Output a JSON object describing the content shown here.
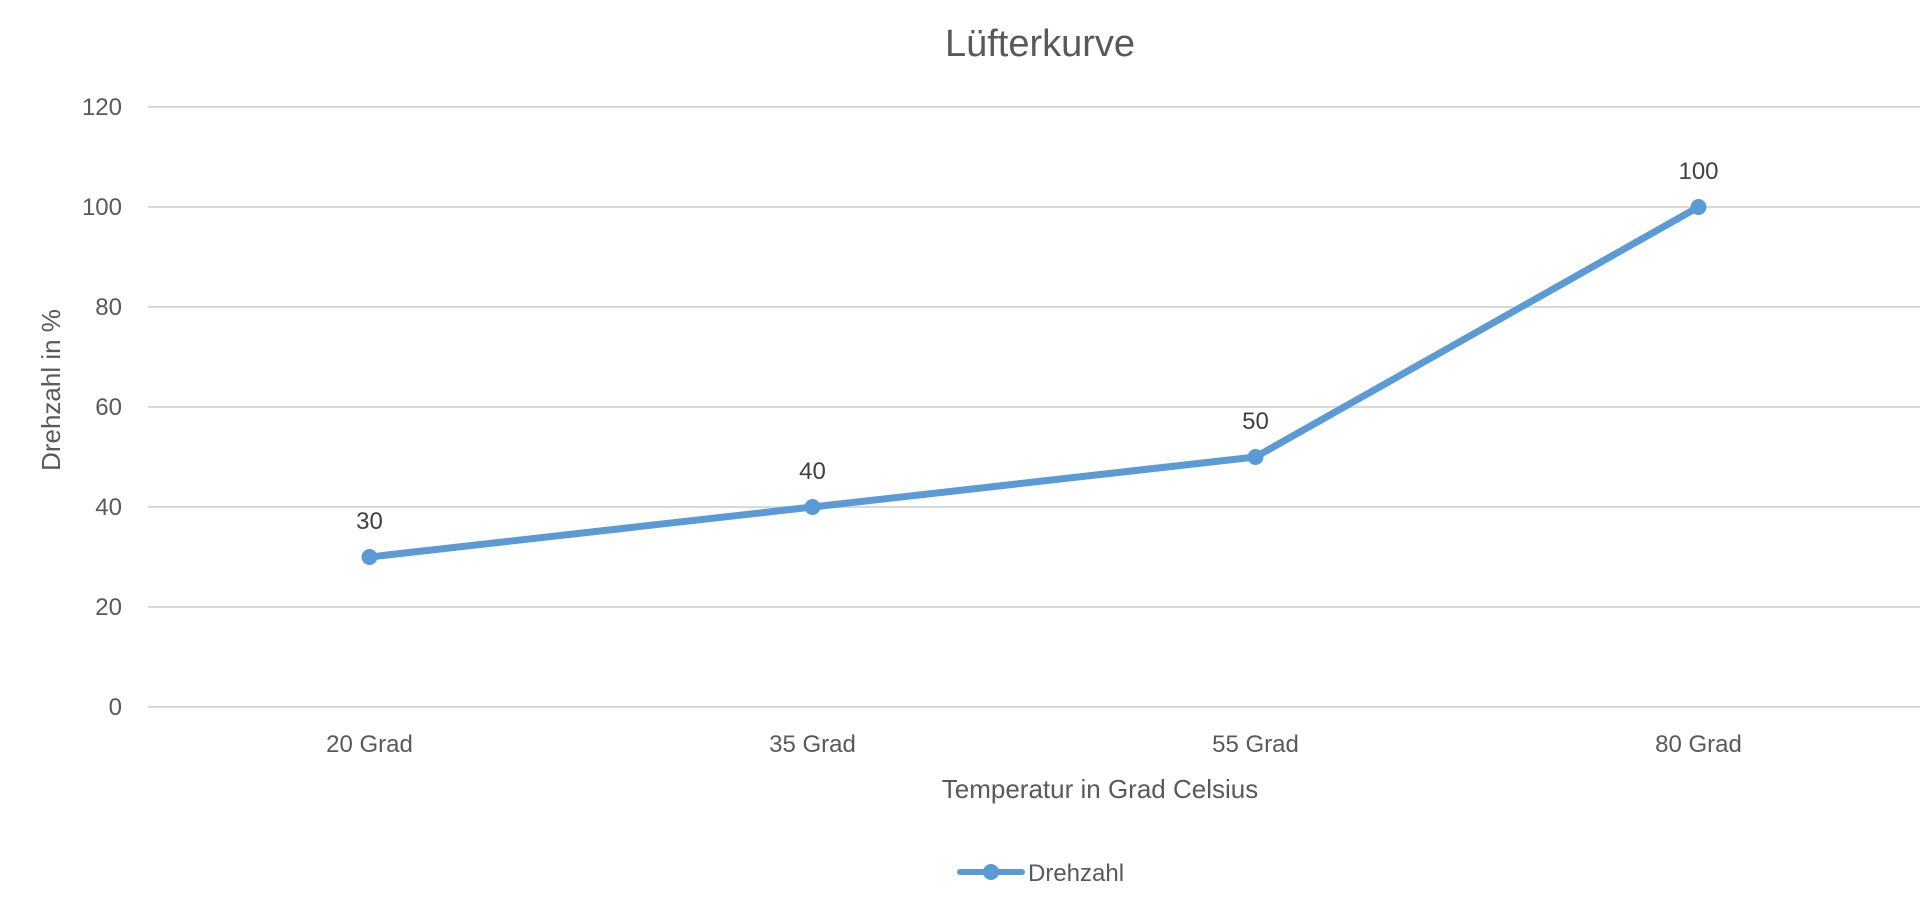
{
  "chart_data": {
    "type": "line",
    "title": "Lüfterkurve",
    "xlabel": "Temperatur in Grad Celsius",
    "ylabel": "Drehzahl in %",
    "categories": [
      "20 Grad",
      "35 Grad",
      "55 Grad",
      "80 Grad"
    ],
    "series": [
      {
        "name": "Drehzahl",
        "values": [
          30,
          40,
          50,
          100
        ],
        "color": "#5b9bd5",
        "data_labels": [
          "30",
          "40",
          "50",
          "100"
        ]
      }
    ],
    "ylim": [
      0,
      120
    ],
    "yticks": [
      "0",
      "20",
      "40",
      "60",
      "80",
      "100",
      "120"
    ],
    "grid": true,
    "legend_position": "bottom"
  }
}
